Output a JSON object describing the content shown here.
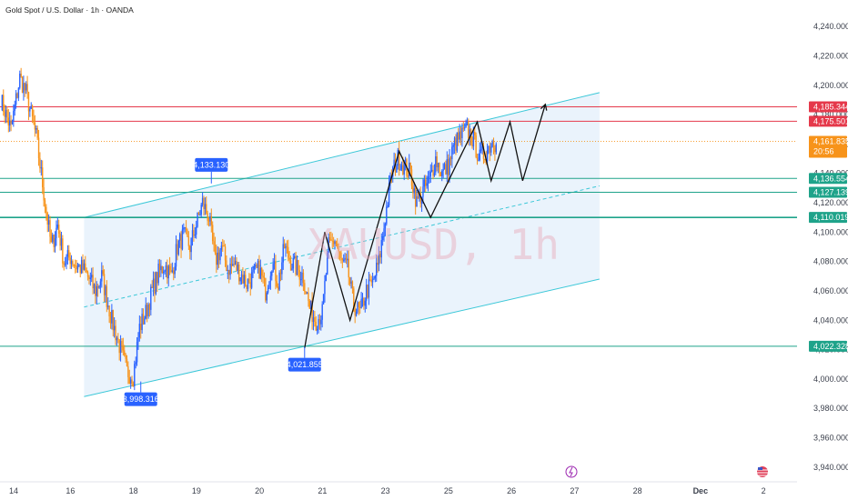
{
  "header": {
    "title": "Gold Spot / U.S. Dollar · 1h · OANDA"
  },
  "watermark": "XAUUSD, 1h",
  "colors": {
    "up": "#2962ff",
    "down": "#f7931a",
    "channel": "#3cc8d8",
    "channel_fill": "#d9eaf9",
    "resistance": "#e5394b",
    "support": "#1fa38a",
    "current": "#f7931a",
    "path": "#111111"
  },
  "chart_data": {
    "type": "candlestick",
    "symbol": "XAUUSD",
    "timeframe": "1h",
    "ylim": [
      3930,
      4250
    ],
    "y_ticks": [
      3940,
      3960,
      3980,
      4000,
      4020,
      4040,
      4060,
      4080,
      4100,
      4120,
      4140,
      4160,
      4180,
      4200,
      4220,
      4240
    ],
    "y_tick_labels": [
      "3,940.000",
      "3,960.000",
      "3,980.000",
      "4,000.000",
      "4,020.000",
      "4,040.000",
      "4,060.000",
      "4,080.000",
      "4,100.000",
      "4,120.000",
      "4,140.000",
      "4,160.000",
      "4,180.000",
      "4,200.000",
      "4,220.000",
      "4,240.000"
    ],
    "x_tick_labels": [
      "14",
      "16",
      "18",
      "19",
      "20",
      "21",
      "23",
      "25",
      "26",
      "27",
      "28",
      "Dec",
      "2"
    ],
    "x_tick_index": [
      0,
      45,
      95,
      145,
      195,
      245,
      295,
      345,
      395,
      445,
      495,
      545,
      595
    ],
    "anchors": [
      [
        0,
        4190
      ],
      [
        8,
        4170
      ],
      [
        15,
        4205
      ],
      [
        20,
        4195
      ],
      [
        28,
        4165
      ],
      [
        35,
        4120
      ],
      [
        40,
        4090
      ],
      [
        45,
        4105
      ],
      [
        50,
        4080
      ],
      [
        55,
        4083
      ],
      [
        60,
        4077
      ],
      [
        65,
        4075
      ],
      [
        70,
        4068
      ],
      [
        75,
        4060
      ],
      [
        80,
        4070
      ],
      [
        88,
        4040
      ],
      [
        95,
        4020
      ],
      [
        100,
        4005
      ],
      [
        105,
        4002
      ],
      [
        110,
        4035
      ],
      [
        115,
        4045
      ],
      [
        120,
        4060
      ],
      [
        125,
        4072
      ],
      [
        130,
        4078
      ],
      [
        135,
        4070
      ],
      [
        140,
        4090
      ],
      [
        145,
        4098
      ],
      [
        150,
        4090
      ],
      [
        155,
        4105
      ],
      [
        160,
        4120
      ],
      [
        165,
        4110
      ],
      [
        170,
        4080
      ],
      [
        175,
        4090
      ],
      [
        180,
        4075
      ],
      [
        185,
        4078
      ],
      [
        190,
        4072
      ],
      [
        195,
        4065
      ],
      [
        200,
        4070
      ],
      [
        205,
        4075
      ],
      [
        210,
        4060
      ],
      [
        215,
        4080
      ],
      [
        220,
        4065
      ],
      [
        225,
        4090
      ],
      [
        230,
        4080
      ],
      [
        235,
        4075
      ],
      [
        240,
        4070
      ],
      [
        245,
        4048
      ],
      [
        250,
        4040
      ],
      [
        255,
        4045
      ],
      [
        260,
        4090
      ],
      [
        265,
        4095
      ],
      [
        270,
        4080
      ],
      [
        275,
        4075
      ],
      [
        280,
        4050
      ],
      [
        285,
        4045
      ],
      [
        290,
        4060
      ],
      [
        295,
        4065
      ],
      [
        300,
        4080
      ],
      [
        305,
        4110
      ],
      [
        310,
        4140
      ],
      [
        315,
        4150
      ],
      [
        320,
        4145
      ],
      [
        325,
        4140
      ],
      [
        330,
        4120
      ],
      [
        335,
        4128
      ],
      [
        340,
        4135
      ],
      [
        345,
        4150
      ],
      [
        350,
        4140
      ],
      [
        355,
        4145
      ],
      [
        360,
        4160
      ],
      [
        365,
        4165
      ],
      [
        370,
        4170
      ],
      [
        375,
        4162
      ],
      [
        380,
        4150
      ],
      [
        385,
        4155
      ],
      [
        390,
        4162
      ],
      [
        393,
        4160
      ]
    ],
    "levels": [
      {
        "price": 4185.344,
        "label": "4,185.344",
        "style": "resistance"
      },
      {
        "price": 4175.501,
        "label": "4,175.501",
        "style": "resistance"
      },
      {
        "price": 4161.835,
        "label": "4,161.835",
        "style": "current",
        "sub": "20:56"
      },
      {
        "price": 4136.554,
        "label": "4,136.554",
        "style": "support"
      },
      {
        "price": 4127.139,
        "label": "4,127.139",
        "style": "support"
      },
      {
        "price": 4110.019,
        "label": "4,110.019",
        "style": "support"
      },
      {
        "price": 4022.328,
        "label": "4,022.328",
        "style": "support"
      }
    ],
    "annotations": [
      {
        "text": "4,133.130",
        "index": 167,
        "price": 4133.13,
        "dir": "up"
      },
      {
        "text": "3,998.316",
        "index": 111,
        "price": 3998.316,
        "dir": "down"
      },
      {
        "text": "4,021.855",
        "index": 241,
        "price": 4021.855,
        "dir": "down"
      }
    ],
    "channel": {
      "lower": [
        [
          66,
          3988
        ],
        [
          475,
          4068
        ]
      ],
      "upper": [
        [
          66,
          4110
        ],
        [
          475,
          4195
        ]
      ],
      "mid": [
        [
          66,
          4049
        ],
        [
          475,
          4131.5
        ]
      ]
    },
    "path": [
      [
        241,
        4021
      ],
      [
        257,
        4100
      ],
      [
        277,
        4040
      ],
      [
        316,
        4155
      ],
      [
        341,
        4110
      ],
      [
        378,
        4175
      ],
      [
        389,
        4135
      ],
      [
        404,
        4175
      ],
      [
        414,
        4135
      ],
      [
        432,
        4187
      ]
    ]
  }
}
